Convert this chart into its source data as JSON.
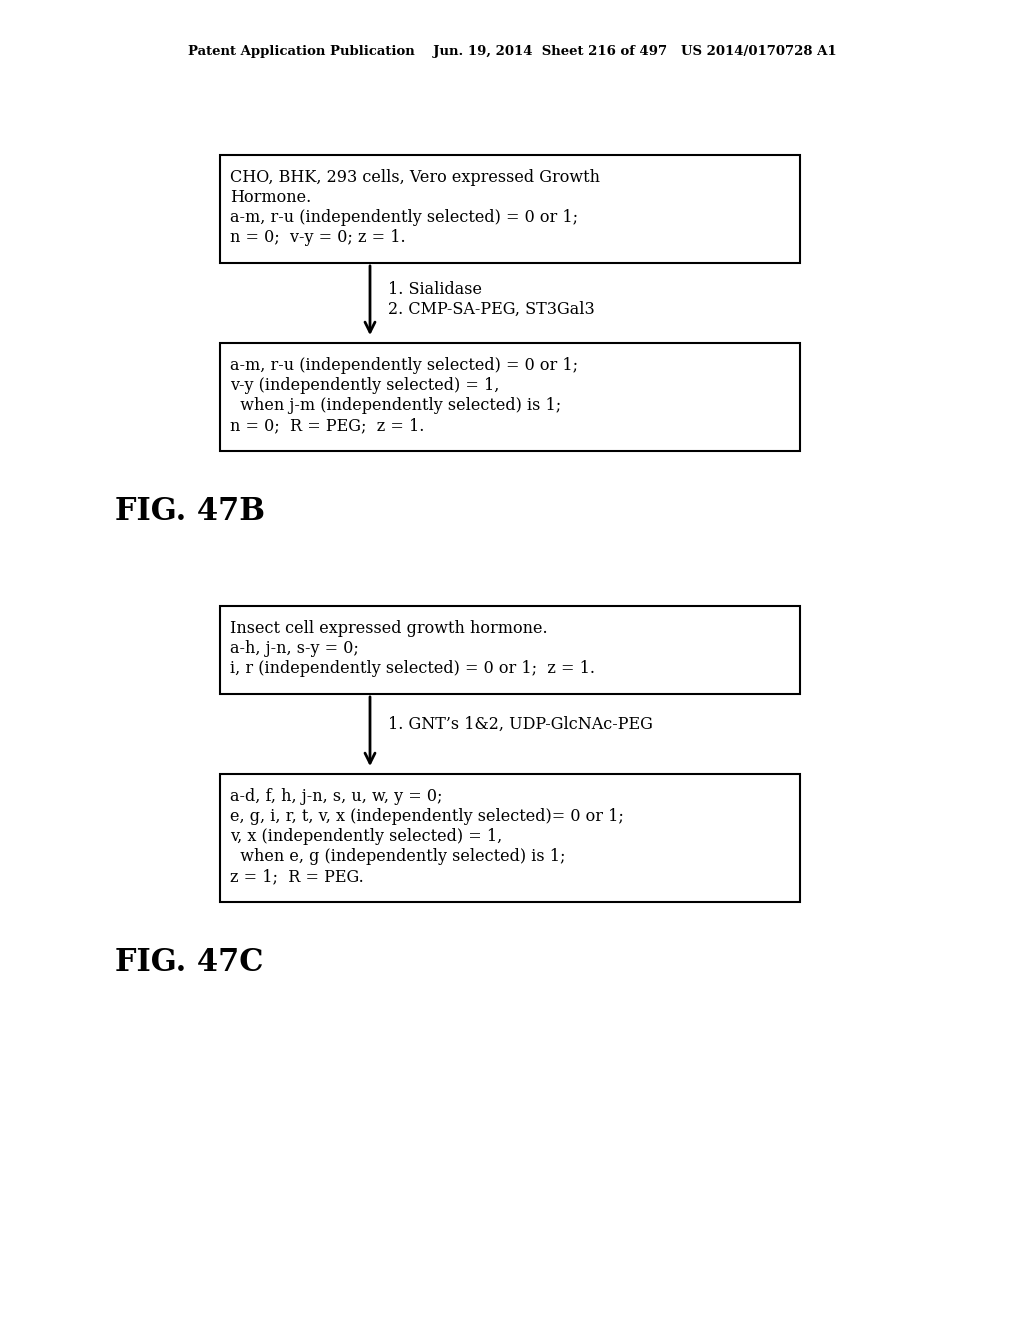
{
  "bg_color": "#ffffff",
  "header_text": "Patent Application Publication    Jun. 19, 2014  Sheet 216 of 497   US 2014/0170728 A1",
  "header_fontsize": 9.5,
  "fig47b_label": "FIG. 47B",
  "fig47c_label": "FIG. 47C",
  "box1_text_lines": [
    "CHO, BHK, 293 cells, Vero expressed Growth",
    "Hormone.",
    "a-m, r-u (independently selected) = 0 or 1;",
    "n = 0;  v-y = 0; z = 1."
  ],
  "arrow1_label_lines": [
    "1. Sialidase",
    "2. CMP-SA-PEG, ST3Gal3"
  ],
  "box2_text_lines": [
    "a-m, r-u (independently selected) = 0 or 1;",
    "v-y (independently selected) = 1,",
    "  when j-m (independently selected) is 1;",
    "n = 0;  R = PEG;  z = 1."
  ],
  "box3_text_lines": [
    "Insect cell expressed growth hormone.",
    "a-h, j-n, s-y = 0;",
    "i, r (independently selected) = 0 or 1;  z = 1."
  ],
  "arrow2_label_lines": [
    "1. GNT’s 1&2, UDP-GlcNAc-PEG"
  ],
  "box4_text_lines": [
    "a-d, f, h, j-n, s, u, w, y = 0;",
    "e, g, i, r, t, v, x (independently selected)= 0 or 1;",
    "v, x (independently selected) = 1,",
    "  when e, g (independently selected) is 1;",
    "z = 1;  R = PEG."
  ],
  "text_fontsize": 11.5,
  "fig_label_fontsize": 22
}
